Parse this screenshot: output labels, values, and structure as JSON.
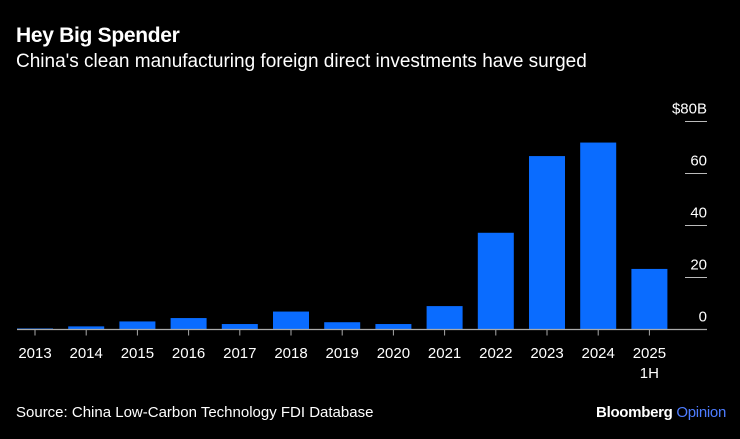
{
  "title": "Hey Big Spender",
  "subtitle": "China's clean manufacturing foreign direct investments have surged",
  "source": "Source: China Low-Carbon Technology FDI Database",
  "brand": {
    "name": "Bloomberg",
    "suffix": "Opinion"
  },
  "chart_data": {
    "type": "bar",
    "title": "Hey Big Spender",
    "subtitle": "China's clean manufacturing foreign direct investments have surged",
    "categories": [
      "2013",
      "2014",
      "2015",
      "2016",
      "2017",
      "2018",
      "2019",
      "2020",
      "2021",
      "2022",
      "2023",
      "2024",
      "2025\n1H"
    ],
    "values": [
      0.4,
      1.2,
      3.1,
      4.4,
      2.1,
      6.9,
      2.8,
      2.1,
      9.0,
      37.2,
      66.7,
      71.9,
      23.3
    ],
    "unit": "billion USD",
    "ylim": [
      0,
      80
    ],
    "yticks": [
      0,
      20,
      40,
      60,
      80
    ],
    "ytick_labels": [
      "0",
      "20",
      "40",
      "60",
      "$80B"
    ],
    "yaxis_position": "right",
    "grid": false,
    "bar_color": "#0a6cff",
    "background": "#000000"
  }
}
